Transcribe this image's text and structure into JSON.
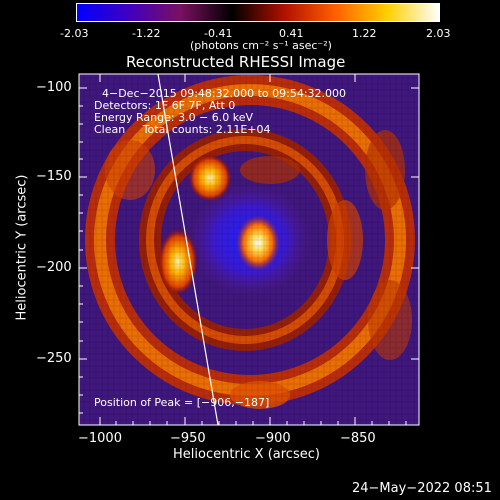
{
  "colorbar": {
    "ticks": [
      "-2.03",
      "-1.22",
      "-0.41",
      "0.41",
      "1.22",
      "2.03"
    ],
    "units": "(photons cm⁻² s⁻¹ asec⁻²)",
    "colors": [
      "#0000ff",
      "#4000c0",
      "#7a1060",
      "#000000",
      "#b01000",
      "#ff6000",
      "#ffd000",
      "#ffffff"
    ]
  },
  "plot": {
    "title": "Reconstructed RHESSI Image",
    "xlabel": "Heliocentric X (arcsec)",
    "ylabel": "Heliocentric Y (arcsec)",
    "xticks": [
      "−1000",
      "−950",
      "−900",
      "−850"
    ],
    "yticks": [
      "−100",
      "−150",
      "−200",
      "−250"
    ],
    "annotations": {
      "time": "4−Dec−2015 09:48:32.000 to 09:54:32.000",
      "detectors": "Detectors: 1F 6F 7F, Att 0",
      "energy": "Energy Range: 3.0 − 6.0 keV",
      "method": "Clean     Total counts: 2.11E+04",
      "peak": "Position of Peak = [−906,−187]"
    }
  },
  "footer": {
    "timestamp": "24−May−2022 08:51"
  }
}
